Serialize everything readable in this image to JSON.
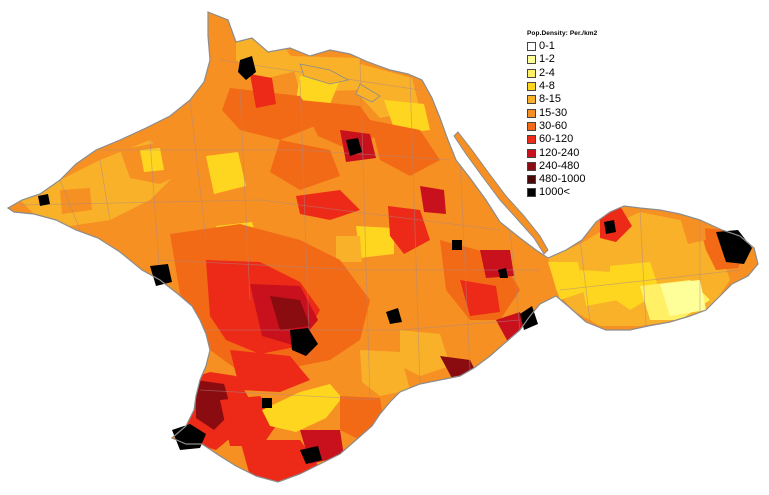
{
  "legend": {
    "title": "Pop.Density: Per./km2",
    "items": [
      {
        "label": "0-1",
        "color": "#ffffff"
      },
      {
        "label": "1-2",
        "color": "#ffff99"
      },
      {
        "label": "2-4",
        "color": "#fff066"
      },
      {
        "label": "4-8",
        "color": "#ffd61f"
      },
      {
        "label": "8-15",
        "color": "#f9b12a"
      },
      {
        "label": "15-30",
        "color": "#f69023"
      },
      {
        "label": "30-60",
        "color": "#f26a16"
      },
      {
        "label": "60-120",
        "color": "#ec2a17"
      },
      {
        "label": "120-240",
        "color": "#c9101d"
      },
      {
        "label": "240-480",
        "color": "#8a0b10"
      },
      {
        "label": "480-1000",
        "color": "#4a0707"
      },
      {
        "label": "1000<",
        "color": "#000000"
      }
    ]
  },
  "colors": {
    "sea": "#ffffff",
    "border": "#8c8c8c",
    "base": "#f69023"
  }
}
